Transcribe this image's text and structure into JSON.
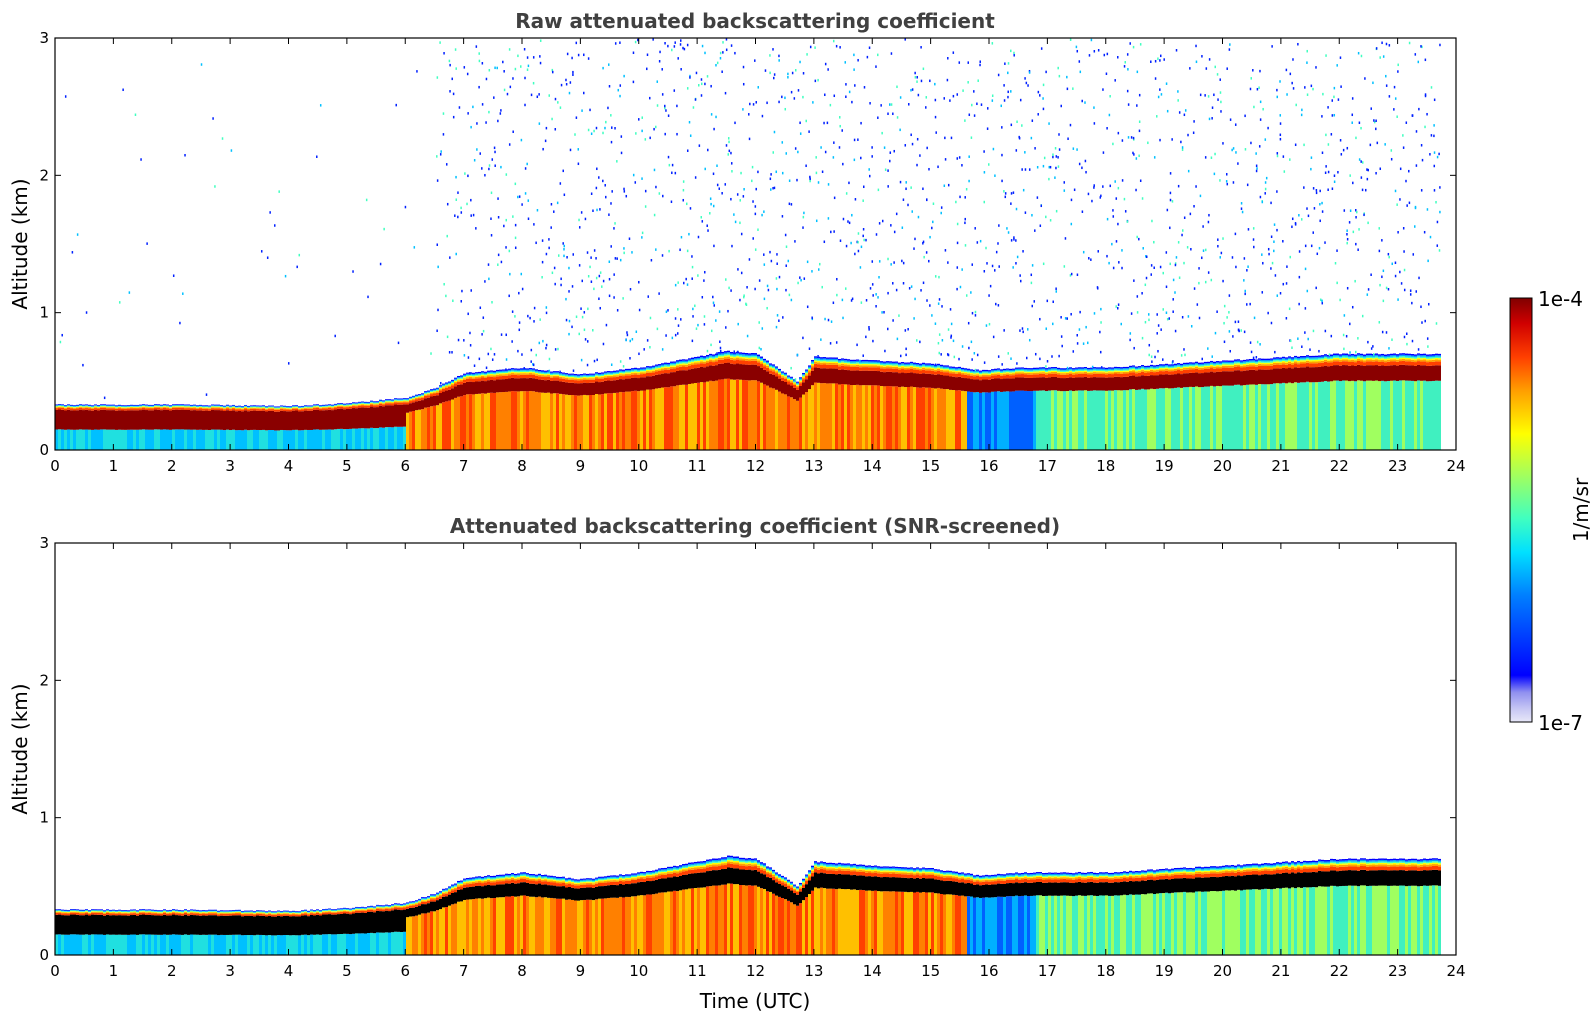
{
  "chart_data": [
    {
      "type": "heatmap",
      "id": "raw",
      "title": "Raw attenuated backscattering coefficient",
      "xlabel": "",
      "ylabel": "Altitude (km)",
      "xlim": [
        0,
        24
      ],
      "ylim": [
        0,
        3
      ],
      "xticks": [
        "0",
        "1",
        "2",
        "3",
        "4",
        "5",
        "6",
        "7",
        "8",
        "9",
        "10",
        "11",
        "12",
        "13",
        "14",
        "15",
        "16",
        "17",
        "18",
        "19",
        "20",
        "21",
        "22",
        "23",
        "24"
      ],
      "yticks": [
        "0",
        "1",
        "2",
        "3"
      ],
      "data_end_time": 23.7,
      "layer_top_km": {
        "time": [
          0,
          2,
          4,
          5,
          6,
          6.5,
          7,
          8,
          9,
          10,
          11,
          11.5,
          12,
          12.7,
          13,
          14,
          15,
          15.8,
          16.5,
          18,
          20,
          22,
          23.7
        ],
        "value": [
          0.33,
          0.33,
          0.32,
          0.34,
          0.38,
          0.45,
          0.56,
          0.6,
          0.55,
          0.6,
          0.68,
          0.72,
          0.7,
          0.5,
          0.68,
          0.65,
          0.63,
          0.58,
          0.6,
          0.6,
          0.65,
          0.7,
          0.7
        ]
      },
      "noise_above_layer": true
    },
    {
      "type": "heatmap",
      "id": "screened",
      "title": "Attenuated backscattering coefficient (SNR-screened)",
      "xlabel": "Time (UTC)",
      "ylabel": "Altitude (km)",
      "xlim": [
        0,
        24
      ],
      "ylim": [
        0,
        3
      ],
      "xticks": [
        "0",
        "1",
        "2",
        "3",
        "4",
        "5",
        "6",
        "7",
        "8",
        "9",
        "10",
        "11",
        "12",
        "13",
        "14",
        "15",
        "16",
        "17",
        "18",
        "19",
        "20",
        "21",
        "22",
        "23",
        "24"
      ],
      "yticks": [
        "0",
        "1",
        "2",
        "3"
      ],
      "data_end_time": 23.7,
      "saturated_color": "#000000",
      "layer_top_km": {
        "time": [
          0,
          2,
          4,
          5,
          6,
          6.5,
          7,
          8,
          9,
          10,
          11,
          11.5,
          12,
          12.7,
          13,
          14,
          15,
          15.8,
          16.5,
          18,
          20,
          22,
          23.7
        ],
        "value": [
          0.33,
          0.33,
          0.32,
          0.34,
          0.38,
          0.45,
          0.56,
          0.6,
          0.55,
          0.6,
          0.68,
          0.72,
          0.7,
          0.5,
          0.68,
          0.65,
          0.63,
          0.58,
          0.6,
          0.6,
          0.65,
          0.7,
          0.7
        ]
      },
      "noise_above_layer": false
    }
  ],
  "colorbar": {
    "max_label": "1e-4",
    "min_label": "1e-7",
    "unit_label": "1/m/sr",
    "colormap": "jet",
    "colors": [
      "#e8e8f8",
      "#c8c8f4",
      "#9090f0",
      "#0000ff",
      "#0080ff",
      "#00e0ff",
      "#40ffc0",
      "#a0ff60",
      "#ffff00",
      "#ffa000",
      "#ff4000",
      "#d00000",
      "#800000"
    ]
  }
}
